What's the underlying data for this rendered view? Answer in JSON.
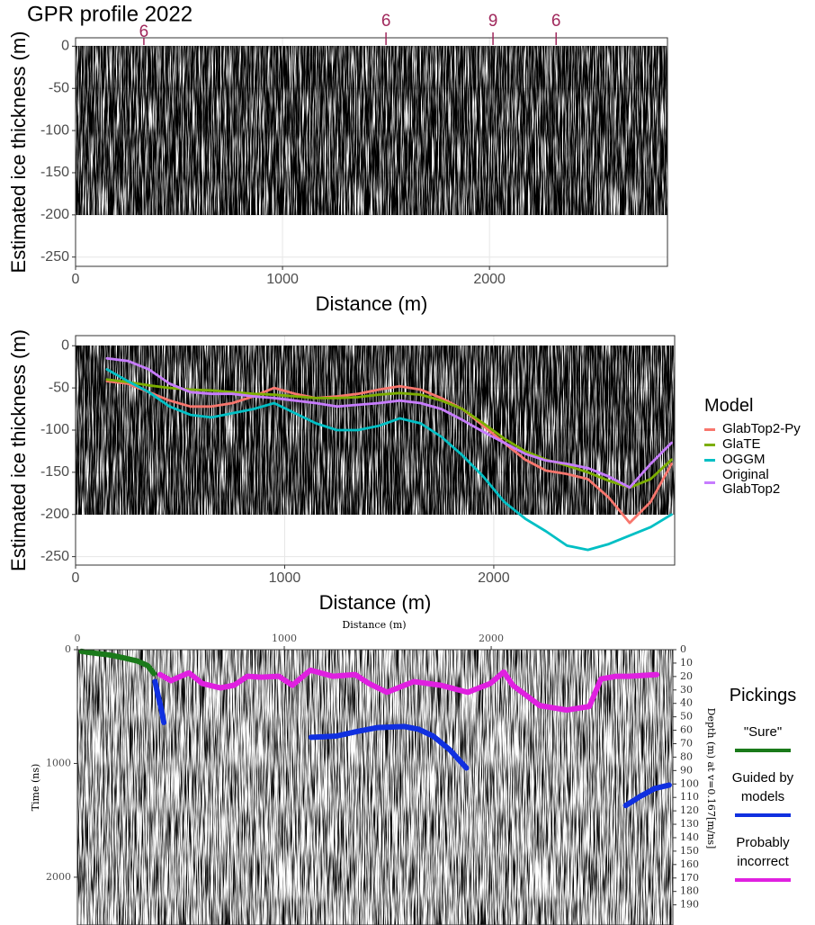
{
  "chart_data": [
    {
      "type": "radargram",
      "title": "GPR profile 2022",
      "x_label": "Distance (m)",
      "y_label": "Estimated ice thickness (m)",
      "xlim": [
        0,
        2860
      ],
      "xticks": [
        0,
        1000,
        2000
      ],
      "ylim": [
        -261,
        10
      ],
      "yticks": [
        0,
        -50,
        -100,
        -150,
        -200,
        -250
      ],
      "grid": true,
      "radargram_ylim": [
        -200,
        0
      ],
      "annotations": [
        {
          "x": 330,
          "value": 6
        },
        {
          "x": 1500,
          "value": 6
        },
        {
          "x": 2017,
          "value": 9
        },
        {
          "x": 2322,
          "value": 6
        }
      ],
      "annotation_color": "#a0285c"
    },
    {
      "type": "line",
      "x_label": "Distance (m)",
      "y_label": "Estimated ice thickness (m)",
      "xlim": [
        0,
        2865
      ],
      "xticks": [
        0,
        1000,
        2000
      ],
      "ylim": [
        -260,
        12
      ],
      "yticks": [
        0,
        -50,
        -100,
        -150,
        -200,
        -250
      ],
      "grid": true,
      "radargram_ylim": [
        -200,
        0
      ],
      "legend_title": "Model",
      "legend_position": "right",
      "x": [
        150,
        250,
        350,
        450,
        550,
        650,
        750,
        850,
        950,
        1050,
        1150,
        1250,
        1350,
        1450,
        1550,
        1650,
        1750,
        1850,
        1950,
        2050,
        2150,
        2250,
        2350,
        2450,
        2550,
        2650,
        2750,
        2850
      ],
      "series": [
        {
          "name": "GlabTop2-Py",
          "color": "#f8766d",
          "values": [
            -42,
            -45,
            -55,
            -65,
            -72,
            -72,
            -68,
            -60,
            -50,
            -57,
            -62,
            -60,
            -57,
            -52,
            -48,
            -52,
            -62,
            -75,
            -95,
            -115,
            -135,
            -148,
            -152,
            -158,
            -180,
            -210,
            -185,
            -140
          ]
        },
        {
          "name": "GlaTE",
          "color": "#7cae00",
          "values": [
            -40,
            -43,
            -47,
            -50,
            -52,
            -53,
            -55,
            -57,
            -58,
            -60,
            -62,
            -62,
            -61,
            -58,
            -56,
            -58,
            -65,
            -75,
            -92,
            -110,
            -125,
            -135,
            -142,
            -150,
            -160,
            -168,
            -158,
            -135
          ]
        },
        {
          "name": "OGGM",
          "color": "#00bfc4",
          "values": [
            -28,
            -42,
            -55,
            -72,
            -82,
            -85,
            -80,
            -75,
            -68,
            -80,
            -92,
            -100,
            -100,
            -95,
            -86,
            -92,
            -108,
            -130,
            -155,
            -185,
            -205,
            -220,
            -237,
            -242,
            -235,
            -225,
            -215,
            -200
          ]
        },
        {
          "name": "Original GlabTop2",
          "color": "#c77cff",
          "values": [
            -15,
            -18,
            -28,
            -45,
            -55,
            -57,
            -57,
            -60,
            -62,
            -65,
            -68,
            -72,
            -70,
            -68,
            -65,
            -68,
            -75,
            -88,
            -102,
            -115,
            -128,
            -136,
            -140,
            -145,
            -155,
            -168,
            -140,
            -115
          ]
        }
      ]
    },
    {
      "type": "picks",
      "x_label": "Distance (m)",
      "y_label": "Time (ns)",
      "y2_label": "Depth (m) at v=0.167[m/ns]",
      "x_axis_position": "top",
      "xlim": [
        0,
        2878
      ],
      "xticks": [
        0,
        1000,
        2000
      ],
      "ylim": [
        2420,
        0
      ],
      "yticks": [
        0,
        1000,
        2000
      ],
      "y2lim": [
        205,
        0
      ],
      "y2ticks": [
        0,
        10,
        20,
        30,
        40,
        50,
        60,
        70,
        80,
        90,
        100,
        110,
        120,
        130,
        140,
        150,
        160,
        170,
        180,
        190
      ],
      "radargram": true,
      "legend_title": "Pickings",
      "legend_position": "right",
      "series": [
        {
          "name": "\"Sure\"",
          "color": "#1a7a1a",
          "x": [
            20,
            80,
            150,
            220,
            290,
            340,
            370
          ],
          "values": [
            15,
            30,
            45,
            70,
            100,
            140,
            210
          ]
        },
        {
          "name": "Guided by models",
          "color": "#1030e0",
          "x": [
            375,
            390,
            405,
            418,
            null,
            1130,
            1250,
            1350,
            1450,
            1580,
            1650,
            1720,
            1800,
            1880,
            null,
            2650,
            2720,
            2790,
            2860
          ],
          "values": [
            280,
            400,
            520,
            640,
            null,
            770,
            760,
            720,
            685,
            675,
            700,
            760,
            880,
            1040,
            null,
            1370,
            1290,
            1220,
            1190
          ]
        },
        {
          "name": "Probably incorrect",
          "color": "#e020e0",
          "x": [
            400,
            452,
            539,
            604,
            691,
            757,
            822,
            887,
            974,
            1039,
            1126,
            1235,
            1343,
            1409,
            1496,
            1626,
            1757,
            1887,
            1996,
            2061,
            2104,
            2235,
            2365,
            2474,
            2530,
            2604,
            2670,
            2800
          ],
          "values": [
            219,
            273,
            203,
            297,
            336,
            313,
            234,
            242,
            234,
            313,
            180,
            234,
            219,
            297,
            375,
            281,
            313,
            375,
            297,
            195,
            313,
            492,
            531,
            500,
            258,
            234,
            234,
            219
          ]
        }
      ]
    }
  ]
}
